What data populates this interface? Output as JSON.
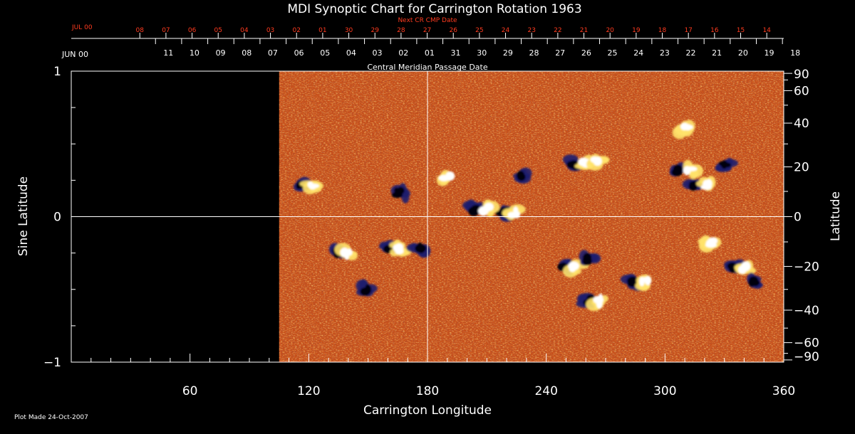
{
  "chart_data": {
    "type": "heatmap",
    "title": "MDI Synoptic Chart for Carrington Rotation 1963",
    "xlabel": "Carrington Longitude",
    "ylabel_left": "Sine Latitude",
    "ylabel_right": "Latitude",
    "xlim": [
      0,
      360
    ],
    "ylim": [
      -1,
      1
    ],
    "x_ticks": [
      60,
      120,
      180,
      240,
      300,
      360
    ],
    "y_left_ticks": [
      -1,
      0,
      1
    ],
    "y_right_ticks": [
      90,
      60,
      40,
      20,
      0,
      -20,
      -40,
      -60,
      -90
    ],
    "data_start_longitude": 105,
    "grid_lines": {
      "longitude": 180,
      "sine_latitude": 0
    },
    "top_axes": {
      "next_cmp": {
        "title": "Next CR CMP Date",
        "month_label": "JUL 00",
        "dates": [
          "08",
          "07",
          "06",
          "05",
          "04",
          "03",
          "02",
          "01",
          "30",
          "29",
          "28",
          "27",
          "26",
          "25",
          "24",
          "23",
          "22",
          "21",
          "20",
          "19",
          "18",
          "17",
          "16",
          "15",
          "14"
        ],
        "color": "#ff3b1f"
      },
      "cmp": {
        "title": "Central Meridian Passage Date",
        "month_label": "JUN 00",
        "dates": [
          "11",
          "10",
          "09",
          "08",
          "07",
          "06",
          "05",
          "04",
          "03",
          "02",
          "01",
          "31",
          "30",
          "29",
          "28",
          "27",
          "26",
          "25",
          "24",
          "23",
          "22",
          "21",
          "20",
          "19",
          "18"
        ],
        "color": "#ffffff"
      }
    },
    "footer": "Plot Made 24-Oct-2007",
    "palette": {
      "background": "#c8501a",
      "positive": "#ffffff",
      "positive_mid": "#ffe36b",
      "negative": "#05050f",
      "negative_mid": "#1f1c6e",
      "axis": "#ffffff"
    },
    "active_regions": [
      {
        "lon": 119,
        "lat": 0.22,
        "pol": "bipolar"
      },
      {
        "lon": 137,
        "lat": -0.25,
        "pol": "bipolar"
      },
      {
        "lon": 149,
        "lat": -0.5,
        "pol": "negative"
      },
      {
        "lon": 163,
        "lat": -0.22,
        "pol": "bipolar"
      },
      {
        "lon": 176,
        "lat": -0.23,
        "pol": "negative"
      },
      {
        "lon": 166,
        "lat": 0.16,
        "pol": "negative"
      },
      {
        "lon": 190,
        "lat": 0.27,
        "pol": "positive"
      },
      {
        "lon": 207,
        "lat": 0.05,
        "pol": "bipolar"
      },
      {
        "lon": 221,
        "lat": 0.03,
        "pol": "bipolar"
      },
      {
        "lon": 228,
        "lat": 0.27,
        "pol": "negative"
      },
      {
        "lon": 257,
        "lat": 0.37,
        "pol": "bipolar"
      },
      {
        "lon": 266,
        "lat": 0.38,
        "pol": "positive"
      },
      {
        "lon": 252,
        "lat": -0.35,
        "pol": "bipolar"
      },
      {
        "lon": 262,
        "lat": -0.3,
        "pol": "negative"
      },
      {
        "lon": 264,
        "lat": -0.58,
        "pol": "bipolar"
      },
      {
        "lon": 287,
        "lat": -0.45,
        "pol": "bipolar"
      },
      {
        "lon": 310,
        "lat": 0.32,
        "pol": "bipolar"
      },
      {
        "lon": 318,
        "lat": 0.22,
        "pol": "bipolar"
      },
      {
        "lon": 310,
        "lat": 0.6,
        "pol": "positive"
      },
      {
        "lon": 330,
        "lat": 0.35,
        "pol": "negative"
      },
      {
        "lon": 338,
        "lat": -0.35,
        "pol": "bipolar"
      },
      {
        "lon": 323,
        "lat": -0.18,
        "pol": "positive"
      },
      {
        "lon": 345,
        "lat": -0.45,
        "pol": "negative"
      }
    ]
  }
}
